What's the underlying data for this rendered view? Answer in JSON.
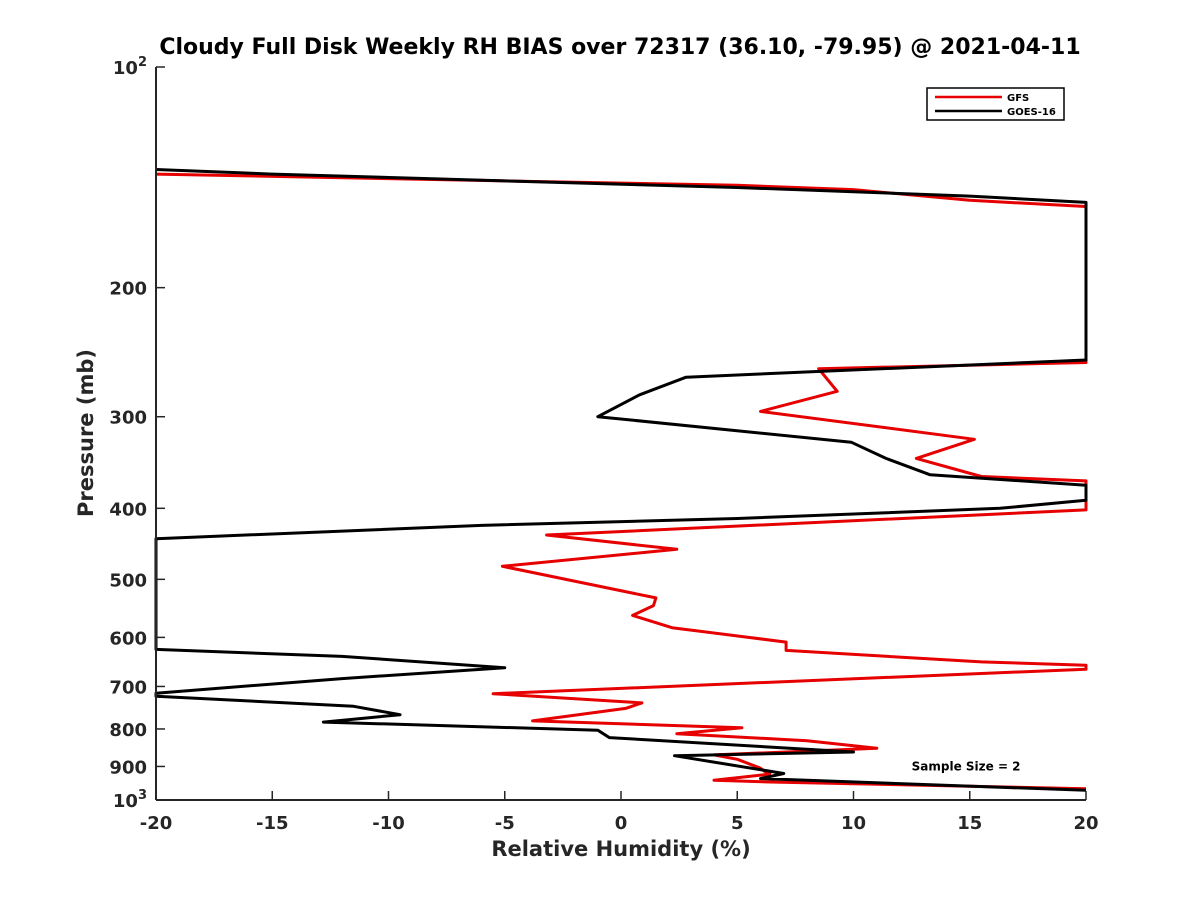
{
  "chart_data": {
    "type": "line",
    "title": "Cloudy Full Disk Weekly RH BIAS over 72317 (36.10, -79.95) @ 2021-04-11",
    "xlabel": "Relative Humidity (%)",
    "ylabel": "Pressure (mb)",
    "xlim": [
      -20,
      20
    ],
    "ylim": [
      100,
      1000
    ],
    "y_scale": "log",
    "y_reversed": true,
    "grid": false,
    "legend_position": "top-right",
    "x_ticks": [
      "-20",
      "-15",
      "-10",
      "-5",
      "0",
      "5",
      "10",
      "15",
      "20"
    ],
    "y_ticks": [
      {
        "value": 100,
        "base": "10",
        "exp": "2"
      },
      {
        "value": 200,
        "label": "200"
      },
      {
        "value": 300,
        "label": "300"
      },
      {
        "value": 400,
        "label": "400"
      },
      {
        "value": 500,
        "label": "500"
      },
      {
        "value": 600,
        "label": "600"
      },
      {
        "value": 700,
        "label": "700"
      },
      {
        "value": 800,
        "label": "800"
      },
      {
        "value": 900,
        "label": "900"
      },
      {
        "value": 1000,
        "base": "10",
        "exp": "3"
      }
    ],
    "series": [
      {
        "name": "GFS",
        "color": "#e60000",
        "points": [
          [
            -20,
            140
          ],
          [
            -5,
            143
          ],
          [
            5,
            145
          ],
          [
            10,
            147
          ],
          [
            15,
            152
          ],
          [
            20,
            155
          ],
          [
            20,
            253
          ],
          [
            8.5,
            258
          ],
          [
            9.3,
            277
          ],
          [
            6,
            295
          ],
          [
            15.2,
            322
          ],
          [
            12.7,
            342
          ],
          [
            15.5,
            362
          ],
          [
            20,
            367
          ],
          [
            20,
            402
          ],
          [
            -3.2,
            435
          ],
          [
            2.4,
            455
          ],
          [
            -5.1,
            480
          ],
          [
            1.5,
            530
          ],
          [
            1.4,
            543
          ],
          [
            0.5,
            560
          ],
          [
            2.2,
            582
          ],
          [
            7.1,
            609
          ],
          [
            7.1,
            625
          ],
          [
            15.5,
            648
          ],
          [
            20,
            655
          ],
          [
            20,
            663
          ],
          [
            -5.5,
            716
          ],
          [
            0.9,
            737
          ],
          [
            0.2,
            750
          ],
          [
            -3.8,
            780
          ],
          [
            5.2,
            797
          ],
          [
            2.4,
            812
          ],
          [
            8,
            830
          ],
          [
            11,
            850
          ],
          [
            4,
            868
          ],
          [
            5,
            880
          ],
          [
            6,
            905
          ],
          [
            6.2,
            915
          ],
          [
            6.4,
            922
          ],
          [
            4,
            940
          ],
          [
            6.4,
            945
          ],
          [
            20,
            965
          ]
        ]
      },
      {
        "name": "GOES-16",
        "color": "#000000",
        "points": [
          [
            -20,
            138
          ],
          [
            -15,
            140
          ],
          [
            -5,
            143
          ],
          [
            5,
            146
          ],
          [
            10,
            148
          ],
          [
            15,
            150
          ],
          [
            20,
            153
          ],
          [
            20,
            251
          ],
          [
            2.8,
            265
          ],
          [
            0.8,
            280
          ],
          [
            -1,
            300
          ],
          [
            9.9,
            325
          ],
          [
            11.4,
            342
          ],
          [
            13.3,
            360
          ],
          [
            20,
            372
          ],
          [
            20,
            390
          ],
          [
            16.3,
            400
          ],
          [
            5,
            413
          ],
          [
            -6,
            422
          ],
          [
            -20,
            440
          ],
          [
            -20,
            623
          ],
          [
            -12,
            637
          ],
          [
            -5,
            660
          ],
          [
            -12,
            683
          ],
          [
            -20,
            715
          ],
          [
            -20,
            722
          ],
          [
            -11.5,
            745
          ],
          [
            -9.5,
            765
          ],
          [
            -12.8,
            783
          ],
          [
            -1,
            803
          ],
          [
            -0.5,
            822
          ],
          [
            10,
            860
          ],
          [
            2.3,
            870
          ],
          [
            7,
            920
          ],
          [
            6,
            935
          ],
          [
            20,
            970
          ]
        ]
      }
    ],
    "annotations": [
      {
        "text": "Sample Size = 2",
        "x": 12.5,
        "y": 900
      }
    ]
  }
}
